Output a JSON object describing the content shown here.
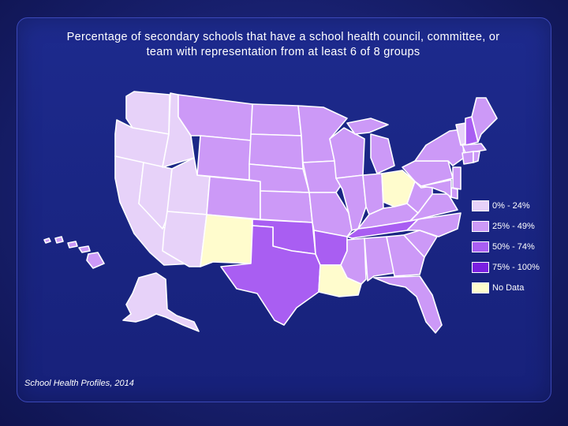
{
  "title_line1": "Percentage of secondary schools that have a school health council, committee, or",
  "title_line2": "team with representation from at least 6 of 8 groups",
  "source": "School Health Profiles, 2014",
  "colors": {
    "low": "#e7d2f9",
    "mid": "#cc99f7",
    "high": "#a95ef2",
    "top": "#7a1fe0",
    "nodata": "#fffccd"
  },
  "legend": [
    {
      "label": "0% - 24%",
      "color_key": "low"
    },
    {
      "label": "25% - 49%",
      "color_key": "mid"
    },
    {
      "label": "50% - 74%",
      "color_key": "high"
    },
    {
      "label": "75% - 100%",
      "color_key": "top"
    },
    {
      "label": "No Data",
      "color_key": "nodata"
    }
  ],
  "states": {
    "WA": "low",
    "OR": "low",
    "CA": "low",
    "NV": "low",
    "ID": "low",
    "UT": "low",
    "AZ": "low",
    "MT": "mid",
    "WY": "mid",
    "CO": "mid",
    "NM": "nodata",
    "ND": "mid",
    "SD": "mid",
    "NE": "mid",
    "KS": "mid",
    "OK": "high",
    "TX": "high",
    "MN": "mid",
    "IA": "mid",
    "MO": "mid",
    "AR": "high",
    "LA": "nodata",
    "WI": "mid",
    "IL": "mid",
    "MI": "mid",
    "IN": "mid",
    "OH": "nodata",
    "KY": "mid",
    "TN": "high",
    "MS": "mid",
    "AL": "mid",
    "GA": "mid",
    "FL": "mid",
    "SC": "mid",
    "NC": "mid",
    "VA": "mid",
    "WV": "mid",
    "PA": "mid",
    "NY": "mid",
    "VT": "low",
    "NH": "high",
    "ME": "mid",
    "MA": "mid",
    "CT": "mid",
    "RI": "mid",
    "NJ": "mid",
    "DE": "mid",
    "MD": "mid",
    "AK": "low",
    "HI": "mid"
  }
}
